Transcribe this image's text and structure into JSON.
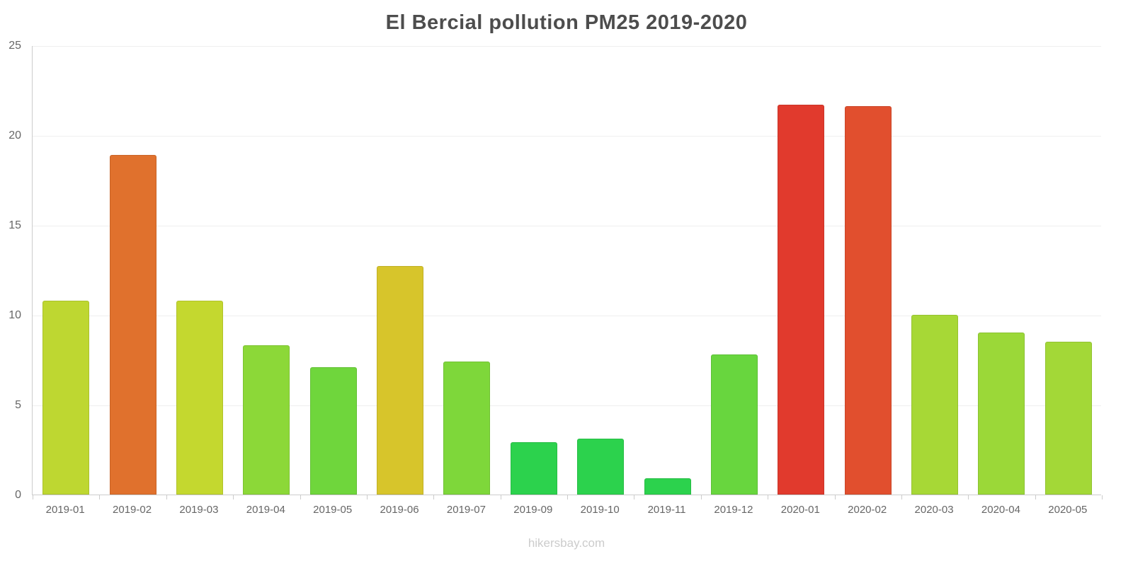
{
  "chart_data": {
    "type": "bar",
    "title": "El Bercial pollution PM25 2019-2020",
    "categories": [
      "2019-01",
      "2019-02",
      "2019-03",
      "2019-04",
      "2019-05",
      "2019-06",
      "2019-07",
      "2019-09",
      "2019-10",
      "2019-11",
      "2019-12",
      "2020-01",
      "2020-02",
      "2020-03",
      "2020-04",
      "2020-05"
    ],
    "values": [
      10.8,
      18.9,
      10.8,
      8.3,
      7.1,
      12.7,
      7.4,
      2.9,
      3.1,
      0.9,
      7.8,
      21.7,
      21.6,
      10.0,
      9.0,
      8.5
    ],
    "bar_colors": [
      "#bed731",
      "#e0712d",
      "#c4d82f",
      "#8cd838",
      "#6fd63c",
      "#d7c52b",
      "#7ed73a",
      "#2cd24d",
      "#2cd24d",
      "#2cd24d",
      "#68d63e",
      "#e13a2d",
      "#e14f2e",
      "#a7d836",
      "#9bd838",
      "#a3d837"
    ],
    "xlabel": "",
    "ylabel": "",
    "ylim": [
      0,
      25
    ],
    "yticks": [
      0,
      5,
      10,
      15,
      20,
      25
    ],
    "grid": true,
    "legend_position": "none"
  },
  "footer": {
    "text": "hikersbay.com"
  },
  "colors": {
    "background": "#ffffff",
    "title_text": "#4d4d4d",
    "axis_line": "#cccccc",
    "gridline": "#efefef",
    "tick_label": "#666666",
    "footer_text": "#cccccc"
  }
}
